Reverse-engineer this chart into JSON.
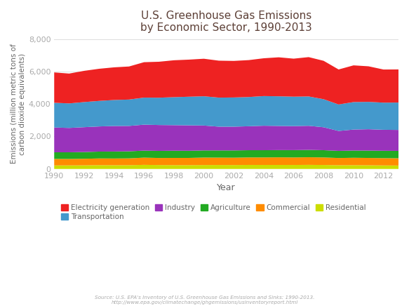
{
  "title": "U.S. Greenhouse Gas Emissions\nby Economic Sector, 1990-2013",
  "xlabel": "Year",
  "ylabel": "Emissions (million metric tons of\ncarbon dioxide equivalents)",
  "source_text": "Source: U.S. EPA's Inventory of U.S. Greenhouse Gas Emissions and Sinks: 1990-2013.\nhttp://www.epa.gov/climatechange/ghgemissions/usinventoryreport.html",
  "years": [
    1990,
    1991,
    1992,
    1993,
    1994,
    1995,
    1996,
    1997,
    1998,
    1999,
    2000,
    2001,
    2002,
    2003,
    2004,
    2005,
    2006,
    2007,
    2008,
    2009,
    2010,
    2011,
    2012,
    2013
  ],
  "sectors": {
    "Residential": [
      216,
      218,
      222,
      233,
      228,
      230,
      252,
      240,
      233,
      232,
      240,
      243,
      239,
      248,
      246,
      247,
      245,
      251,
      244,
      228,
      232,
      225,
      216,
      211
    ],
    "Commercial": [
      399,
      395,
      404,
      413,
      415,
      420,
      444,
      435,
      446,
      447,
      460,
      454,
      454,
      460,
      462,
      468,
      462,
      469,
      463,
      445,
      456,
      452,
      449,
      445
    ],
    "Agriculture": [
      410,
      412,
      415,
      422,
      430,
      436,
      432,
      437,
      443,
      440,
      440,
      443,
      447,
      445,
      445,
      445,
      451,
      452,
      447,
      440,
      445,
      453,
      454,
      456
    ],
    "Industry": [
      1527,
      1499,
      1530,
      1548,
      1570,
      1562,
      1598,
      1592,
      1573,
      1565,
      1533,
      1462,
      1462,
      1475,
      1507,
      1486,
      1479,
      1484,
      1412,
      1225,
      1291,
      1315,
      1291,
      1289
    ],
    "Transportation": [
      1520,
      1510,
      1545,
      1572,
      1601,
      1623,
      1665,
      1681,
      1723,
      1762,
      1801,
      1788,
      1797,
      1799,
      1826,
      1826,
      1812,
      1806,
      1726,
      1630,
      1693,
      1683,
      1671,
      1686
    ],
    "Electricity generation": [
      1868,
      1836,
      1922,
      1977,
      2009,
      2035,
      2179,
      2213,
      2271,
      2282,
      2309,
      2274,
      2250,
      2272,
      2326,
      2399,
      2339,
      2421,
      2363,
      2154,
      2258,
      2189,
      2038,
      2038
    ]
  },
  "colors": {
    "Residential": "#ccdd00",
    "Commercial": "#ff8c00",
    "Agriculture": "#22aa22",
    "Industry": "#9933bb",
    "Transportation": "#4499cc",
    "Electricity generation": "#ee2222"
  },
  "sectors_order": [
    "Residential",
    "Commercial",
    "Agriculture",
    "Industry",
    "Transportation",
    "Electricity generation"
  ],
  "legend_order": [
    "Electricity generation",
    "Transportation",
    "Industry",
    "Agriculture",
    "Commercial",
    "Residential"
  ],
  "ylim": [
    0,
    8000
  ],
  "yticks": [
    0,
    2000,
    4000,
    6000,
    8000
  ],
  "background_color": "#ffffff",
  "title_color": "#5d4037",
  "axis_label_color": "#666666",
  "tick_color": "#aaaaaa",
  "grid_color": "#dddddd"
}
